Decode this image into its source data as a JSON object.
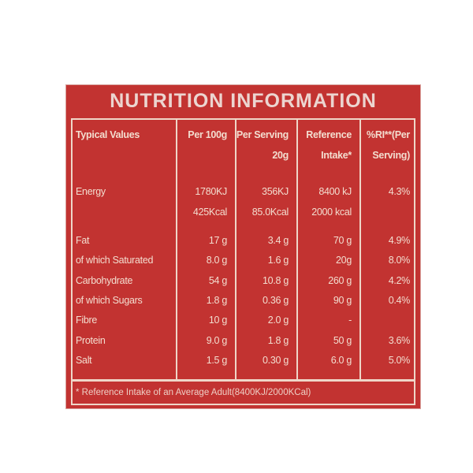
{
  "title": "NUTRITION INFORMATION",
  "headers": [
    "Typical Values",
    "Per 100g",
    "Per Serving 20g",
    "Reference Intake*",
    "%RI**(Per Serving)"
  ],
  "header_lines": [
    [
      "Typical Values"
    ],
    [
      "Per 100g"
    ],
    [
      "Per Serving",
      "20g"
    ],
    [
      "Reference",
      "Intake*"
    ],
    [
      "%RI**(Per",
      "Serving)"
    ]
  ],
  "energy": {
    "label": "Energy",
    "per100": [
      "1780KJ",
      "425Kcal"
    ],
    "serving": [
      "356KJ",
      "85.0Kcal"
    ],
    "ri": [
      "8400 kJ",
      "2000 kcal"
    ],
    "pct": "4.3%"
  },
  "rows": [
    {
      "label": "Fat",
      "per100": "17 g",
      "serving": "3.4 g",
      "ri": "70 g",
      "pct": "4.9%"
    },
    {
      "label": " of which Saturated",
      "per100": "8.0 g",
      "serving": "1.6 g",
      "ri": "20g",
      "pct": "8.0%"
    },
    {
      "label": " Carbohydrate",
      "per100": "54 g",
      "serving": "10.8 g",
      "ri": "260 g",
      "pct": "4.2%"
    },
    {
      "label": "of which Sugars",
      "per100": "1.8 g",
      "serving": "0.36 g",
      "ri": "90 g",
      "pct": "0.4%"
    },
    {
      "label": "Fibre",
      "per100": "10 g",
      "serving": "2.0 g",
      "ri": "-",
      "pct": ""
    },
    {
      "label": "Protein",
      "per100": "9.0 g",
      "serving": "1.8 g",
      "ri": "50 g",
      "pct": "3.6%"
    },
    {
      "label": "Salt",
      "per100": "1.5 g",
      "serving": "0.30 g",
      "ri": "6.0 g",
      "pct": "5.0%"
    }
  ],
  "footnote": "* Reference Intake of an Average Adult(8400KJ/2000KCal)",
  "colors": {
    "background": "#c23331",
    "text": "#f3ddcf"
  }
}
